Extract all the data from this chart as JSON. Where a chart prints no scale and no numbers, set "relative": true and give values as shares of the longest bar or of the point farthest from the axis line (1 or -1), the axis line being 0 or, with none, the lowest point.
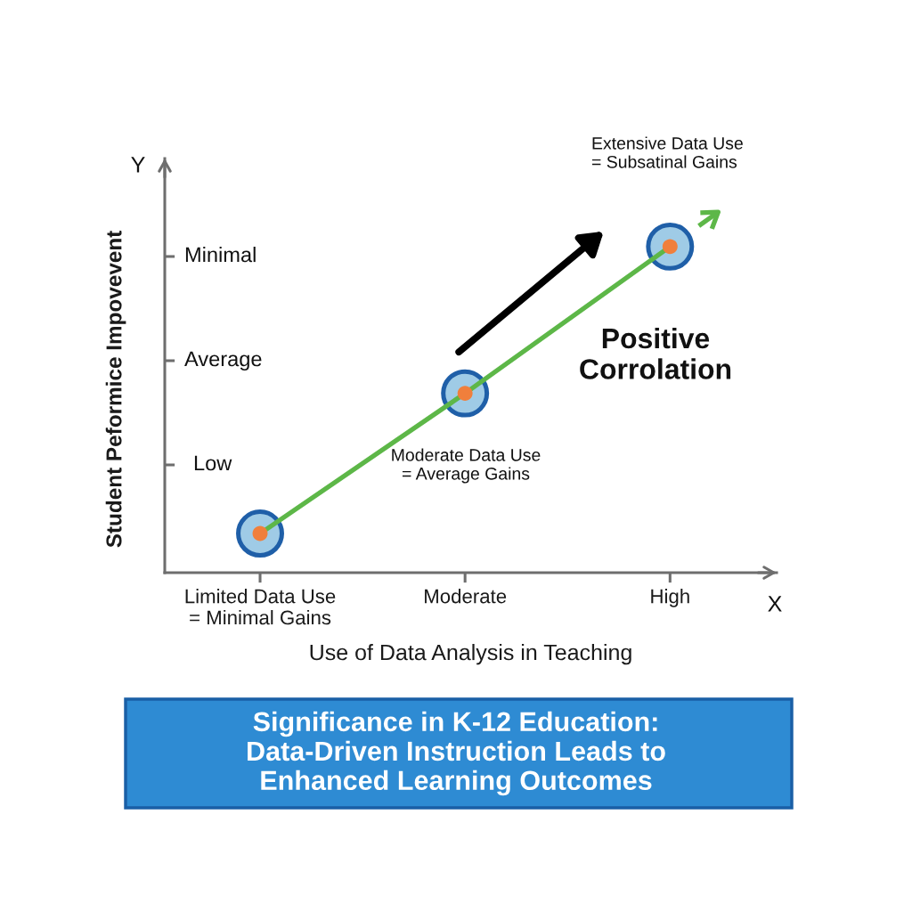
{
  "chart_data": {
    "type": "scatter",
    "title": "Significance in K-12 Education:\nData-Driven Instruction Leads to\nEnhanced Learning Outcomes",
    "xlabel": "Use of Data Analysis in Teaching",
    "ylabel": "Student Peformice Impovevent",
    "categories": [
      "Limited Data Use\n= Minimal Gains",
      "Moderate",
      "High"
    ],
    "relative": true,
    "series": [
      {
        "values": [
          0.12,
          0.55,
          1
        ],
        "color": "#9fcbe6",
        "marker": "circle"
      },
      {
        "type": "line",
        "values": [
          0.12,
          0.55,
          1
        ],
        "color": "#5db748",
        "colors": [
          "#f07f3c",
          "#f07f3c",
          "#f07f3c"
        ],
        "marker": "circle",
        "line_style": "solid"
      }
    ],
    "annotations": [
      "Extensive Data Use\n= Subsatinal Gains",
      "Moderate Data Use\n= Average Gains",
      "Positive\nCorrolation",
      "Y",
      "X",
      "Minimal",
      "Average",
      "Low"
    ]
  }
}
